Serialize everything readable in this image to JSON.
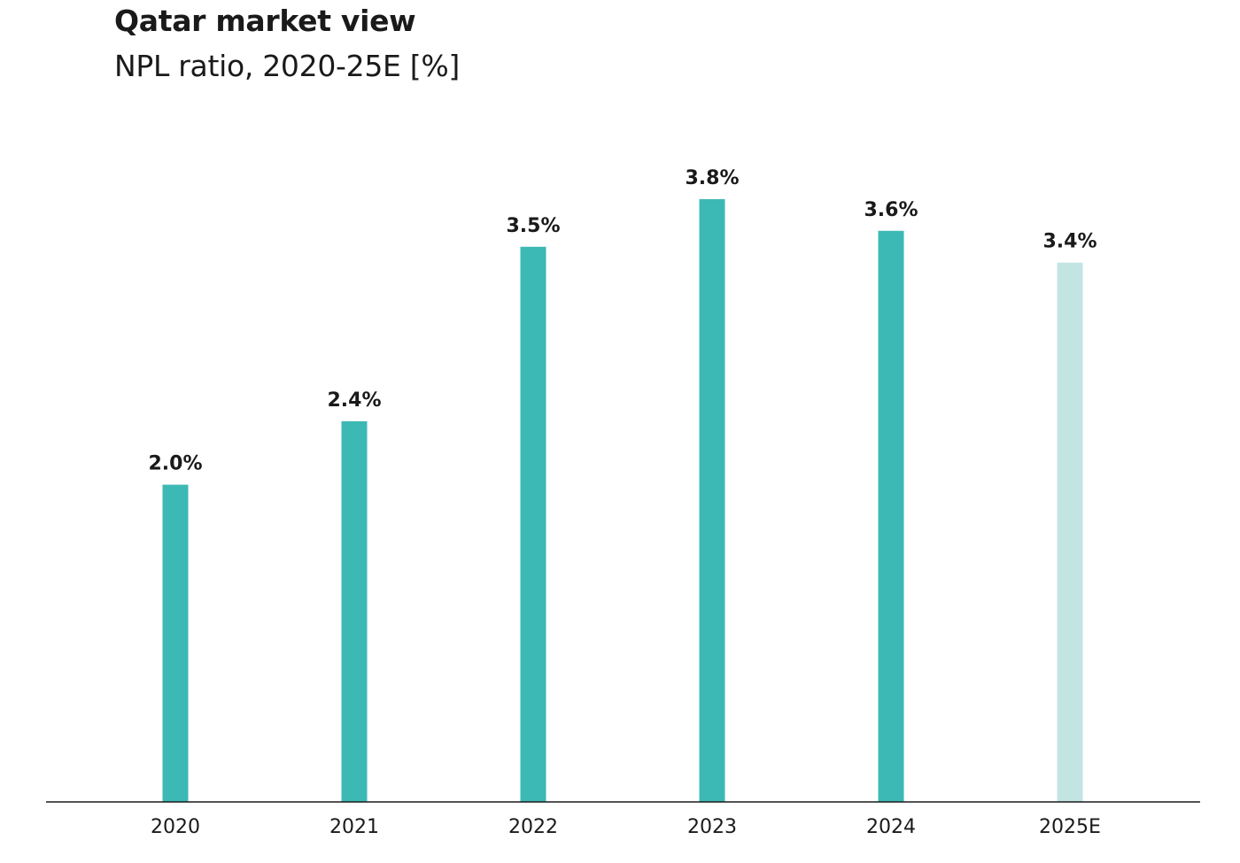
{
  "title": "Qatar market view",
  "subtitle": "NPL ratio, 2020-25E [%]",
  "chart_data": {
    "type": "bar",
    "title": "Qatar market view",
    "subtitle": "NPL ratio, 2020-25E [%]",
    "categories": [
      "2020",
      "2021",
      "2022",
      "2023",
      "2024",
      "2025E"
    ],
    "values": [
      2.0,
      2.4,
      3.5,
      3.8,
      3.6,
      3.4
    ],
    "data_labels": [
      "2.0%",
      "2.4%",
      "3.5%",
      "3.8%",
      "3.6%",
      "3.4%"
    ],
    "estimated": [
      false,
      false,
      false,
      false,
      false,
      true
    ],
    "xlabel": "",
    "ylabel": "",
    "ylim": [
      0,
      3.8
    ],
    "grid": false,
    "legend": "none",
    "colors": {
      "actual": "#3cb9b4",
      "estimate": "#c2e5e4",
      "axis": "#1a1a1a"
    }
  }
}
